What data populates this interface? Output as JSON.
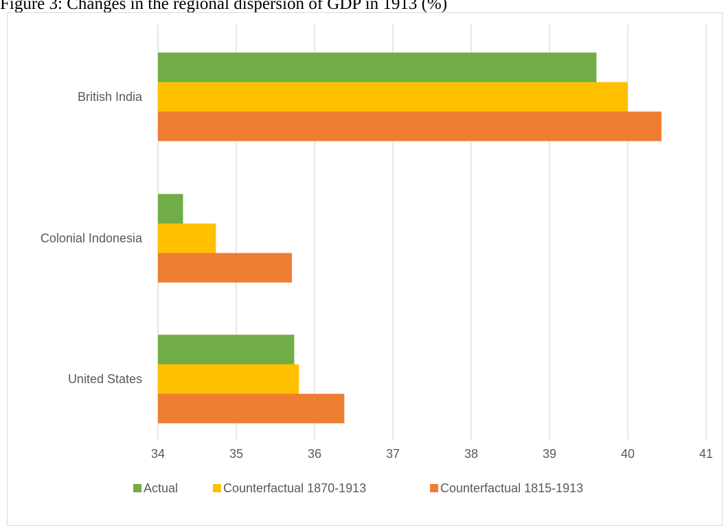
{
  "figure": {
    "title": "Figure 3: Changes in the regional dispersion of GDP in 1913 (%)"
  },
  "colors": {
    "actual": "#70ad47",
    "cf1870": "#ffc000",
    "cf1815": "#ed7d31",
    "grid": "#d9d9d9",
    "text": "#595959"
  },
  "chart_data": {
    "type": "bar",
    "orientation": "horizontal",
    "categories": [
      "British India",
      "Colonial Indonesia",
      "United States"
    ],
    "series": [
      {
        "name": "Actual",
        "values": [
          39.6,
          34.32,
          35.74
        ]
      },
      {
        "name": "Counterfactual 1870-1913",
        "values": [
          40.0,
          34.74,
          35.8
        ]
      },
      {
        "name": "Counterfactual 1815-1913",
        "values": [
          40.43,
          35.71,
          36.38
        ]
      }
    ],
    "xlim": [
      34,
      41
    ],
    "xticks": [
      "34",
      "35",
      "36",
      "37",
      "38",
      "39",
      "40",
      "41"
    ],
    "grid": true,
    "legend_position": "bottom"
  }
}
